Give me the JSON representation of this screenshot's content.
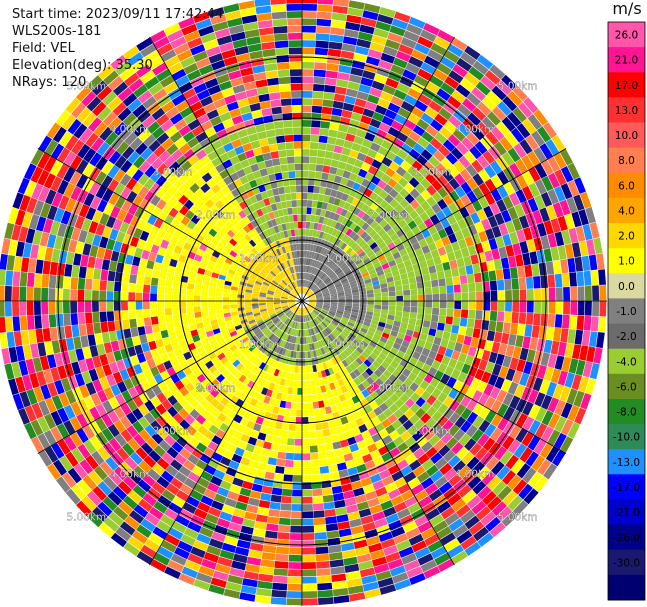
{
  "header": {
    "start_time": "Start time: 2023/09/11 17:42:44",
    "instrument": "WLS200s-181",
    "field": "Field: VEL",
    "elevation": "Elevation(deg): 35.30",
    "nrays": "NRays: 120"
  },
  "chart_data": {
    "type": "polar_ppi",
    "field": "VEL",
    "units": "m/s",
    "n_rays": 120,
    "range_rings_km": [
      1.0,
      2.0,
      3.0,
      4.0
    ],
    "ring_labels": [
      [
        "1.00km",
        "1.00km",
        "1.00km",
        "1.00km"
      ],
      [
        "2.00km",
        "2.00km",
        "2.00km",
        "2.00km"
      ],
      [
        "3.00km",
        "3.00km",
        "3.00km",
        "3.00km"
      ],
      [
        "4.00km",
        "4.00km",
        "4.00km",
        "4.00km"
      ],
      [
        "5.00km",
        "5.00km",
        "5.00km",
        "5.00km"
      ]
    ],
    "colorbar": {
      "unit_label": "m/s",
      "tick_labels": [
        "26.0",
        "21.0",
        "17.0",
        "13.0",
        "10.0",
        "8.0",
        "6.0",
        "4.0",
        "2.0",
        "1.0",
        "0.0",
        "-1.0",
        "-2.0",
        "-4.0",
        "-6.0",
        "-8.0",
        "-10.0",
        "-13.0",
        "-17.0",
        "-21.0",
        "-26.0",
        "-30.0"
      ],
      "colors": [
        "#ff55aa",
        "#ff1493",
        "#ff0000",
        "#ff3030",
        "#ff5a5a",
        "#ff7f50",
        "#ff8c00",
        "#ffa500",
        "#ffd700",
        "#ffff00",
        "#d9d9a0",
        "#808080",
        "#6b6b6b",
        "#9acd32",
        "#6b8e23",
        "#228b22",
        "#2e8b57",
        "#1e90ff",
        "#0000ff",
        "#0000cd",
        "#00008b",
        "#191970",
        "#000070"
      ]
    }
  }
}
